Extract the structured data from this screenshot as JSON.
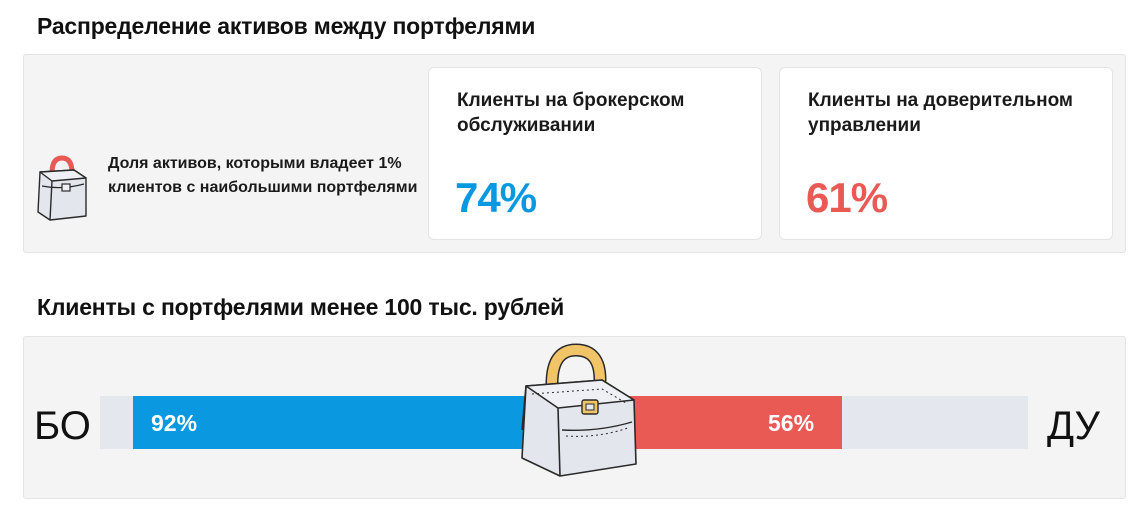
{
  "sections": {
    "share": {
      "title": "Распределение активов между портфелями",
      "label": "Доля активов, которыми владеет 1% клиентов с наибольшими портфелями",
      "cards": {
        "brokerage": {
          "label": "Клиенты на брокерском обслуживании",
          "value": "74%"
        },
        "trust": {
          "label": "Клиенты на доверительном управлении",
          "value": "61%"
        }
      }
    },
    "small_portfolios": {
      "title": "Клиенты с портфелями менее 100 тыс. рублей",
      "left_label": "БО",
      "right_label": "ДУ",
      "bars": {
        "bo": {
          "value": 92,
          "text": "92%"
        },
        "du": {
          "value": 56,
          "text": "56%"
        }
      }
    }
  },
  "colors": {
    "brokerage": "#0a98e0",
    "trust": "#e95a55",
    "track": "#e5e7ee",
    "bag_handle_small": "#e95a55",
    "bag_handle_big": "#f2c468"
  },
  "icons": {
    "share": "briefcase-icon",
    "comparison": "briefcase-icon"
  }
}
